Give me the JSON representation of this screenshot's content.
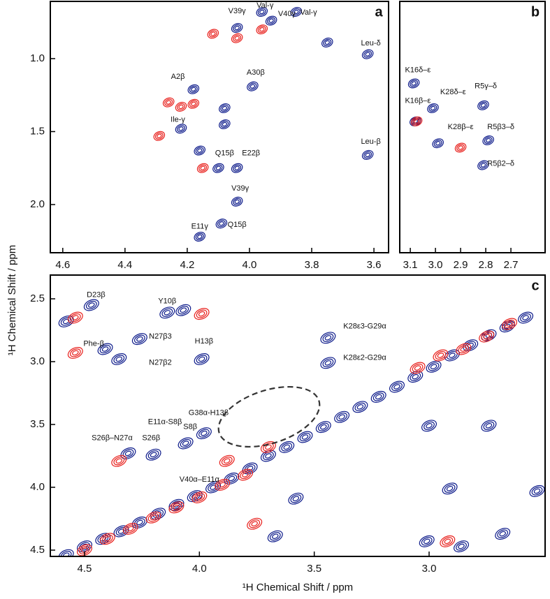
{
  "chart_data": [
    {
      "type": "contour",
      "panel": "a",
      "ylabel": "¹H Chemical Shift / ppm",
      "xlim": [
        3.553,
        4.64
      ],
      "x_inverted": true,
      "ylim": [
        0.608,
        2.33
      ],
      "y_inverted": true,
      "xticks": [
        4.6,
        4.4,
        4.2,
        {
          "value": 4,
          "label": "4.0"
        },
        3.8,
        3.6
      ],
      "yticks": [
        {
          "value": 1,
          "label": "1.0"
        },
        1.5,
        {
          "value": 2,
          "label": "2.0"
        }
      ],
      "series": [
        {
          "color": "#0c1a8a",
          "x": [
            4.04,
            3.96,
            3.93,
            3.85,
            3.75,
            3.62,
            4.18,
            3.99,
            4.08,
            4.08,
            4.22,
            4.16,
            4.1,
            4.04,
            4.04,
            4.09,
            4.16,
            3.62
          ],
          "y": [
            0.79,
            0.68,
            0.74,
            0.68,
            0.89,
            0.97,
            1.21,
            1.19,
            1.34,
            1.45,
            1.48,
            1.63,
            1.75,
            1.75,
            1.98,
            2.13,
            2.22,
            1.66
          ]
        },
        {
          "color": "#e8201c",
          "x": [
            4.117,
            4.04,
            3.96,
            4.26,
            4.22,
            4.18,
            4.29,
            4.15
          ],
          "y": [
            0.83,
            0.86,
            0.8,
            1.3,
            1.33,
            1.31,
            1.53,
            1.75
          ]
        }
      ],
      "annotations": [
        {
          "text": "V39γ",
          "x": 4.04,
          "y": 0.675
        },
        {
          "text": "Val-γ",
          "x": 3.95,
          "y": 0.636
        },
        {
          "text": "V40γ",
          "x": 3.88,
          "y": 0.694
        },
        {
          "text": "Val-γ",
          "x": 3.81,
          "y": 0.684
        },
        {
          "text": "Leu-δ",
          "x": 3.61,
          "y": 0.895
        },
        {
          "text": "A2β",
          "x": 4.23,
          "y": 1.124
        },
        {
          "text": "A30β",
          "x": 3.98,
          "y": 1.096
        },
        {
          "text": "Ile-γ",
          "x": 4.23,
          "y": 1.42
        },
        {
          "text": "Q15β",
          "x": 4.08,
          "y": 1.65
        },
        {
          "text": "E22β",
          "x": 3.995,
          "y": 1.65
        },
        {
          "text": "V39γ",
          "x": 4.03,
          "y": 1.89
        },
        {
          "text": "E11γ",
          "x": 4.16,
          "y": 2.15
        },
        {
          "text": "Q15β",
          "x": 4.04,
          "y": 2.14
        },
        {
          "text": "Leu-β",
          "x": 3.61,
          "y": 1.57
        }
      ]
    },
    {
      "type": "contour",
      "panel": "b",
      "xlim": [
        2.564,
        3.142
      ],
      "x_inverted": true,
      "ylim": [
        0.608,
        2.33
      ],
      "y_inverted": true,
      "xticks": [
        3.1,
        {
          "value": 3,
          "label": "3.0"
        },
        2.9,
        2.8,
        2.7
      ],
      "series": [
        {
          "color": "#0c1a8a",
          "x": [
            3.086,
            3.08,
            3.01,
            2.99,
            2.81,
            2.79,
            2.81
          ],
          "y": [
            1.17,
            1.43,
            1.34,
            1.58,
            1.32,
            1.56,
            1.73
          ]
        },
        {
          "color": "#e8201c",
          "x": [
            3.075,
            2.9
          ],
          "y": [
            1.43,
            1.61
          ]
        }
      ],
      "annotations": [
        {
          "text": "K16δ–ε",
          "x": 3.07,
          "y": 1.08
        },
        {
          "text": "K16β–ε",
          "x": 3.07,
          "y": 1.29
        },
        {
          "text": "K28δ–ε",
          "x": 2.93,
          "y": 1.23
        },
        {
          "text": "R5γ–δ",
          "x": 2.8,
          "y": 1.19
        },
        {
          "text": "K28β–ε",
          "x": 2.9,
          "y": 1.47
        },
        {
          "text": "R5β3–δ",
          "x": 2.74,
          "y": 1.47
        },
        {
          "text": "R5β2–δ",
          "x": 2.74,
          "y": 1.72
        }
      ]
    },
    {
      "type": "contour",
      "panel": "c",
      "xlabel": "¹H Chemical Shift / ppm",
      "xlim": [
        2.495,
        4.649
      ],
      "x_inverted": true,
      "ylim": [
        2.311,
        4.55
      ],
      "y_inverted": true,
      "xticks": [
        4.5,
        {
          "value": 4,
          "label": "4.0"
        },
        3.5,
        {
          "value": 3,
          "label": "3.0"
        }
      ],
      "yticks": [
        2.5,
        {
          "value": 3,
          "label": "3.0"
        },
        3.5,
        {
          "value": 4,
          "label": "4.0"
        },
        4.5
      ],
      "series": [
        {
          "color": "#0c1a8a",
          "x": [
            4.47,
            4.58,
            4.41,
            4.26,
            4.35,
            4.14,
            4.07,
            3.99,
            3.44,
            3.44,
            4.2,
            4.31,
            4.06,
            3.98,
            3.0,
            2.74,
            2.91,
            2.53,
            3.58,
            3.67,
            2.68,
            2.86,
            3.01,
            4.58,
            4.5,
            4.42,
            4.34,
            4.26,
            4.18,
            4.1,
            4.02,
            3.94,
            3.86,
            3.78,
            3.7,
            3.62,
            3.54,
            3.46,
            3.38,
            3.3,
            3.22,
            3.14,
            3.06,
            2.98,
            2.9,
            2.82,
            2.74,
            2.66,
            2.58
          ],
          "y": [
            2.55,
            2.68,
            2.9,
            2.82,
            2.98,
            2.61,
            2.59,
            2.98,
            2.81,
            3.01,
            3.74,
            3.73,
            3.65,
            3.57,
            3.51,
            3.51,
            4.01,
            4.03,
            4.09,
            4.39,
            4.37,
            4.47,
            4.43,
            4.54,
            4.47,
            4.41,
            4.35,
            4.28,
            4.21,
            4.14,
            4.07,
            4.0,
            3.93,
            3.85,
            3.75,
            3.68,
            3.6,
            3.52,
            3.44,
            3.36,
            3.28,
            3.2,
            3.12,
            3.04,
            2.95,
            2.87,
            2.79,
            2.72,
            2.65
          ]
        },
        {
          "color": "#e8201c",
          "x": [
            4.54,
            4.54,
            3.88,
            4.35,
            3.76,
            2.92,
            3.99,
            4.5,
            4.4,
            4.3,
            4.2,
            4.1,
            4.0,
            3.9,
            3.8,
            3.7,
            3.05,
            2.95,
            2.85,
            2.75,
            2.65
          ],
          "y": [
            2.65,
            2.93,
            3.79,
            3.79,
            4.29,
            4.43,
            2.62,
            4.5,
            4.41,
            4.33,
            4.24,
            4.16,
            4.08,
            3.98,
            3.9,
            3.68,
            3.05,
            2.95,
            2.9,
            2.8,
            2.7
          ]
        }
      ],
      "annotations": [
        {
          "text": "D23β",
          "x": 4.45,
          "y": 2.47
        },
        {
          "text": "Y10β",
          "x": 4.14,
          "y": 2.52
        },
        {
          "text": "Phe-β",
          "x": 4.46,
          "y": 2.86
        },
        {
          "text": "N27β3",
          "x": 4.17,
          "y": 2.8
        },
        {
          "text": "N27β2",
          "x": 4.17,
          "y": 3.01
        },
        {
          "text": "H13β",
          "x": 3.98,
          "y": 2.84
        },
        {
          "text": "K28ε3-G29α",
          "x": 3.28,
          "y": 2.72
        },
        {
          "text": "K28ε2-G29α",
          "x": 3.28,
          "y": 2.97
        },
        {
          "text": "G38α-H13β",
          "x": 3.96,
          "y": 3.41
        },
        {
          "text": "E11α-S8β",
          "x": 4.15,
          "y": 3.48
        },
        {
          "text": "S8β",
          "x": 4.04,
          "y": 3.52
        },
        {
          "text": "S26β–N27α",
          "x": 4.38,
          "y": 3.61
        },
        {
          "text": "S26β",
          "x": 4.21,
          "y": 3.61
        },
        {
          "text": "V40α–E11α",
          "x": 4.0,
          "y": 3.94
        }
      ]
    }
  ]
}
